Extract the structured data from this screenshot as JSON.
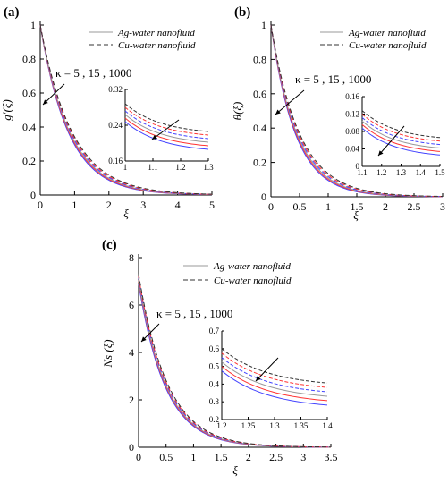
{
  "chart_data": [
    {
      "type": "line",
      "panel_label": "(a)",
      "xlabel": "ξ",
      "ylabel": "g′(ξ)",
      "xlim": [
        0,
        5
      ],
      "ylim": [
        0,
        1
      ],
      "xticks": [
        0,
        1,
        2,
        3,
        4,
        5
      ],
      "yticks": [
        0,
        0.2,
        0.4,
        0.6,
        0.8,
        1
      ],
      "annotation": "κ = 5 , 15 , 1000",
      "legend": [
        {
          "label": "Ag-water nanofluid",
          "style": "solid"
        },
        {
          "label": "Cu-water nanofluid",
          "style": "dashed"
        }
      ],
      "decay": 1.15,
      "series": [
        {
          "style": "solid",
          "color": "#4444ff",
          "start": 1.0,
          "k": 1.22
        },
        {
          "style": "solid",
          "color": "#ff3333",
          "start": 1.0,
          "k": 1.19
        },
        {
          "style": "solid",
          "color": "#999999",
          "start": 1.0,
          "k": 1.16
        },
        {
          "style": "dashed",
          "color": "#4444ff",
          "start": 1.0,
          "k": 1.13
        },
        {
          "style": "dashed",
          "color": "#ff3333",
          "start": 1.0,
          "k": 1.1
        },
        {
          "style": "dashed",
          "color": "#333333",
          "start": 1.0,
          "k": 1.07
        }
      ],
      "inset": {
        "xlim": [
          1,
          1.3
        ],
        "ylim": [
          0.16,
          0.32
        ],
        "xticks": [
          1,
          1.1,
          1.2,
          1.3
        ],
        "yticks": [
          0.16,
          0.24,
          0.32
        ]
      }
    },
    {
      "type": "line",
      "panel_label": "(b)",
      "xlabel": "ξ",
      "ylabel": "θ(ξ)",
      "xlim": [
        0,
        3
      ],
      "ylim": [
        0,
        1
      ],
      "xticks": [
        0,
        0.5,
        1,
        1.5,
        2,
        2.5,
        3
      ],
      "yticks": [
        0,
        0.2,
        0.4,
        0.6,
        0.8,
        1
      ],
      "annotation": "κ = 5 , 15 , 1000",
      "legend": [
        {
          "label": "Ag-water nanofluid",
          "style": "solid"
        },
        {
          "label": "Cu-water nanofluid",
          "style": "dashed"
        }
      ],
      "series": [
        {
          "style": "solid",
          "color": "#4444ff",
          "start": 1.0,
          "k": 2.35
        },
        {
          "style": "solid",
          "color": "#ff3333",
          "start": 1.0,
          "k": 2.28
        },
        {
          "style": "solid",
          "color": "#999999",
          "start": 1.0,
          "k": 2.21
        },
        {
          "style": "dashed",
          "color": "#4444ff",
          "start": 1.0,
          "k": 2.14
        },
        {
          "style": "dashed",
          "color": "#ff3333",
          "start": 1.0,
          "k": 2.07
        },
        {
          "style": "dashed",
          "color": "#333333",
          "start": 1.0,
          "k": 2.0
        }
      ],
      "inset": {
        "xlim": [
          1.1,
          1.5
        ],
        "ylim": [
          0,
          0.16
        ],
        "xticks": [
          1.1,
          1.2,
          1.3,
          1.4,
          1.5
        ],
        "yticks": [
          0,
          0.04,
          0.08,
          0.12,
          0.16
        ]
      }
    },
    {
      "type": "line",
      "panel_label": "(c)",
      "xlabel": "ξ",
      "ylabel": "Ns (ξ)",
      "xlim": [
        0,
        3.5
      ],
      "ylim": [
        0,
        8
      ],
      "xticks": [
        0,
        0.5,
        1,
        1.5,
        2,
        2.5,
        3,
        3.5
      ],
      "yticks": [
        0,
        2,
        4,
        6,
        8
      ],
      "annotation": "κ = 5 , 15 , 1000",
      "legend": [
        {
          "label": "Ag-water nanofluid",
          "style": "solid"
        },
        {
          "label": "Cu-water nanofluid",
          "style": "dashed"
        }
      ],
      "series": [
        {
          "style": "solid",
          "color": "#4444ff",
          "start": 6.9,
          "k": 2.05
        },
        {
          "style": "solid",
          "color": "#ff3333",
          "start": 7.0,
          "k": 2.02
        },
        {
          "style": "solid",
          "color": "#999999",
          "start": 7.05,
          "k": 1.99
        },
        {
          "style": "dashed",
          "color": "#4444ff",
          "start": 7.15,
          "k": 1.96
        },
        {
          "style": "dashed",
          "color": "#ff3333",
          "start": 7.2,
          "k": 1.93
        },
        {
          "style": "dashed",
          "color": "#333333",
          "start": 7.3,
          "k": 1.9
        }
      ],
      "inset": {
        "xlim": [
          1.2,
          1.4
        ],
        "ylim": [
          0.2,
          0.7
        ],
        "xticks": [
          1.2,
          1.25,
          1.3,
          1.35,
          1.4
        ],
        "yticks": [
          0.2,
          0.3,
          0.4,
          0.5,
          0.6,
          0.7
        ]
      }
    }
  ]
}
